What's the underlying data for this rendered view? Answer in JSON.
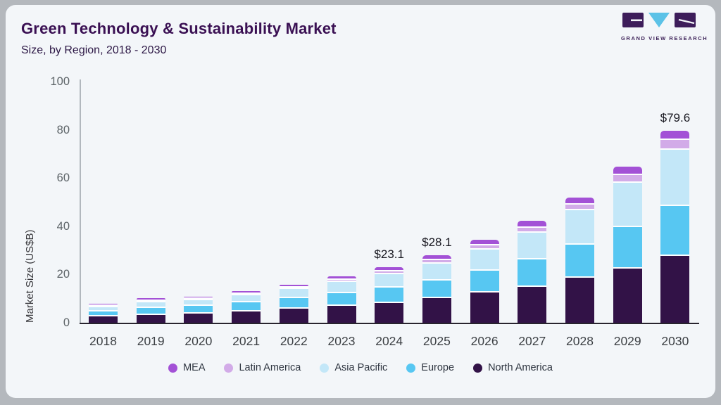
{
  "card": {
    "title": "Green Technology & Sustainability Market",
    "subtitle": "Size, by Region, 2018 - 2030"
  },
  "logo": {
    "text": "GRAND VIEW RESEARCH",
    "dark_color": "#3d1d5a",
    "accent_color": "#5bc2e7"
  },
  "chart_data": {
    "type": "bar",
    "stacked": true,
    "title": "Green Technology & Sustainability Market Size, by Region, 2018 - 2030",
    "xlabel": "",
    "ylabel": "Market Size (US$B)",
    "ylim": [
      0,
      100
    ],
    "yticks": [
      0,
      20,
      40,
      60,
      80,
      100
    ],
    "grid": false,
    "legend_position": "bottom",
    "categories": [
      "2018",
      "2019",
      "2020",
      "2021",
      "2022",
      "2023",
      "2024",
      "2025",
      "2026",
      "2027",
      "2028",
      "2029",
      "2030"
    ],
    "series": [
      {
        "name": "North America",
        "color": "#321247",
        "values": [
          3.1,
          3.8,
          4.4,
          5.3,
          6.3,
          7.5,
          8.8,
          10.7,
          13.0,
          15.6,
          19.2,
          23.1,
          28.3
        ]
      },
      {
        "name": "Europe",
        "color": "#57c7f2",
        "values": [
          2.2,
          2.9,
          3.1,
          3.8,
          4.5,
          5.4,
          6.4,
          7.5,
          9.3,
          11.3,
          13.7,
          17.2,
          20.8
        ]
      },
      {
        "name": "Asia Pacific",
        "color": "#c3e7f8",
        "values": [
          1.6,
          2.4,
          2.4,
          3.0,
          3.7,
          4.7,
          5.6,
          7.0,
          8.7,
          11.0,
          14.3,
          18.2,
          23.1
        ]
      },
      {
        "name": "Latin America",
        "color": "#d2abe8",
        "values": [
          0.3,
          0.4,
          0.4,
          0.5,
          0.6,
          0.8,
          1.0,
          1.3,
          1.6,
          2.0,
          2.4,
          3.3,
          4.1
        ]
      },
      {
        "name": "MEA",
        "color": "#a351d6",
        "values": [
          0.3,
          0.4,
          0.4,
          0.5,
          0.6,
          0.8,
          1.3,
          1.6,
          1.9,
          2.4,
          2.4,
          2.8,
          3.3
        ]
      }
    ],
    "bar_labels": [
      "",
      "",
      "",
      "",
      "",
      "",
      "$23.1",
      "$28.1",
      "",
      "",
      "",
      "",
      "$79.6"
    ],
    "legend": [
      "MEA",
      "Latin America",
      "Asia Pacific",
      "Europe",
      "North America"
    ]
  }
}
